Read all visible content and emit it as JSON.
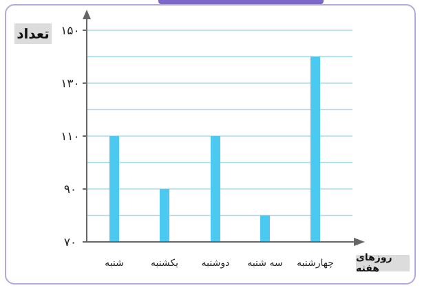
{
  "chart_data": {
    "type": "bar",
    "categories": [
      "شنبه",
      "یکشنبه",
      "دوشنبه",
      "سه شنبه",
      "چهارشنبه"
    ],
    "values": [
      110,
      90,
      110,
      80,
      140
    ],
    "ylabel": "تعداد",
    "xlabel": "روزهای هفته",
    "ylim": [
      70,
      155
    ],
    "yticks": [
      70,
      90,
      110,
      130,
      150
    ],
    "ytick_labels": [
      "۷۰",
      "۹۰",
      "۱۱۰",
      "۱۳۰",
      "۱۵۰"
    ],
    "gridlines_every": 10,
    "grid": true,
    "bar_color": "#4cc9f0",
    "grid_color": "#a9dcef"
  }
}
